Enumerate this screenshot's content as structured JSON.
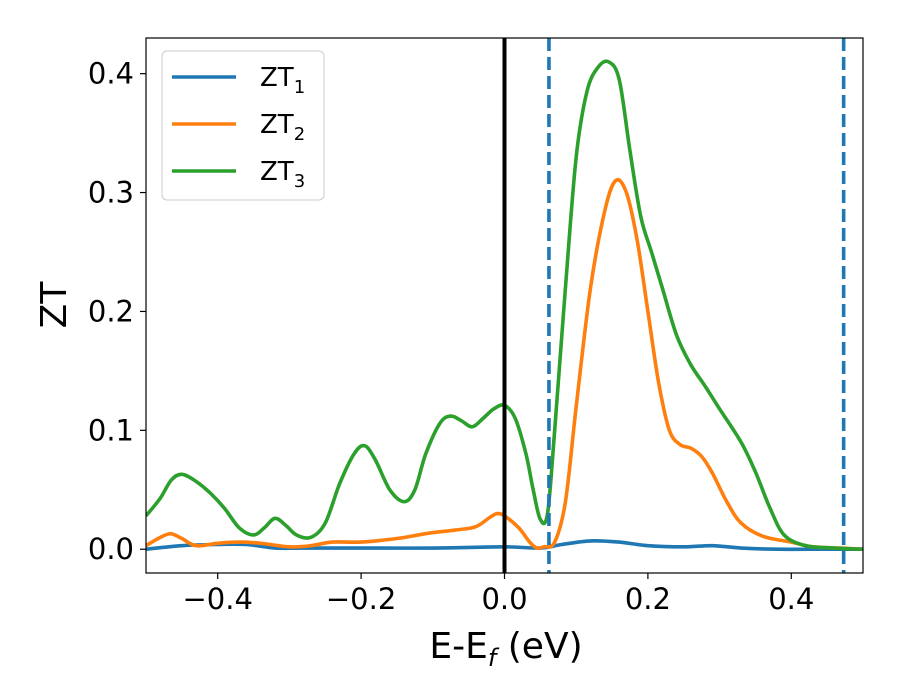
{
  "chart_data": {
    "type": "line",
    "title": "",
    "xlabel": "E-E",
    "xlabel_subscript": "f",
    "xlabel_suffix": " (eV)",
    "ylabel": "ZT",
    "xlim": [
      -0.5,
      0.5
    ],
    "ylim": [
      -0.02,
      0.43
    ],
    "x_ticks": [
      -0.4,
      -0.2,
      0.0,
      0.2,
      0.4
    ],
    "x_tick_labels": [
      "−0.4",
      "−0.2",
      "0.0",
      "0.2",
      "0.4"
    ],
    "y_ticks": [
      0.0,
      0.1,
      0.2,
      0.3,
      0.4
    ],
    "y_tick_labels": [
      "0.0",
      "0.1",
      "0.2",
      "0.3",
      "0.4"
    ],
    "grid": false,
    "legend_position": "top-left",
    "reference_lines": [
      {
        "x": 0.0,
        "style": "solid",
        "color": "#000000"
      },
      {
        "x": 0.062,
        "style": "dashed",
        "color": "#1f77b4"
      },
      {
        "x": 0.473,
        "style": "dashed",
        "color": "#1f77b4"
      }
    ],
    "series": [
      {
        "name": "ZT",
        "subscript": "1",
        "color": "#1f77b4",
        "points": [
          [
            -0.5,
            0.0
          ],
          [
            -0.45,
            0.003
          ],
          [
            -0.4,
            0.004
          ],
          [
            -0.36,
            0.004
          ],
          [
            -0.32,
            0.001
          ],
          [
            -0.28,
            0.001
          ],
          [
            -0.2,
            0.001
          ],
          [
            -0.1,
            0.001
          ],
          [
            0.0,
            0.002
          ],
          [
            0.05,
            0.001
          ],
          [
            0.08,
            0.004
          ],
          [
            0.12,
            0.007
          ],
          [
            0.16,
            0.006
          ],
          [
            0.2,
            0.003
          ],
          [
            0.25,
            0.002
          ],
          [
            0.29,
            0.003
          ],
          [
            0.33,
            0.001
          ],
          [
            0.38,
            0.0
          ],
          [
            0.45,
            0.0
          ],
          [
            0.5,
            0.0
          ]
        ]
      },
      {
        "name": "ZT",
        "subscript": "2",
        "color": "#ff7f0e",
        "points": [
          [
            -0.5,
            0.003
          ],
          [
            -0.48,
            0.01
          ],
          [
            -0.465,
            0.013
          ],
          [
            -0.45,
            0.009
          ],
          [
            -0.43,
            0.003
          ],
          [
            -0.4,
            0.005
          ],
          [
            -0.37,
            0.006
          ],
          [
            -0.34,
            0.005
          ],
          [
            -0.3,
            0.002
          ],
          [
            -0.27,
            0.003
          ],
          [
            -0.24,
            0.006
          ],
          [
            -0.2,
            0.006
          ],
          [
            -0.15,
            0.009
          ],
          [
            -0.12,
            0.012
          ],
          [
            -0.1,
            0.014
          ],
          [
            -0.07,
            0.016
          ],
          [
            -0.04,
            0.019
          ],
          [
            -0.02,
            0.027
          ],
          [
            -0.01,
            0.03
          ],
          [
            0.0,
            0.028
          ],
          [
            0.02,
            0.018
          ],
          [
            0.035,
            0.006
          ],
          [
            0.045,
            0.001
          ],
          [
            0.055,
            0.002
          ],
          [
            0.07,
            0.006
          ],
          [
            0.085,
            0.04
          ],
          [
            0.1,
            0.12
          ],
          [
            0.12,
            0.22
          ],
          [
            0.14,
            0.285
          ],
          [
            0.155,
            0.31
          ],
          [
            0.17,
            0.3
          ],
          [
            0.185,
            0.26
          ],
          [
            0.2,
            0.2
          ],
          [
            0.215,
            0.14
          ],
          [
            0.23,
            0.1
          ],
          [
            0.245,
            0.088
          ],
          [
            0.26,
            0.085
          ],
          [
            0.275,
            0.078
          ],
          [
            0.29,
            0.064
          ],
          [
            0.31,
            0.04
          ],
          [
            0.33,
            0.022
          ],
          [
            0.36,
            0.011
          ],
          [
            0.4,
            0.006
          ],
          [
            0.43,
            0.002
          ],
          [
            0.47,
            0.001
          ],
          [
            0.5,
            0.0
          ]
        ]
      },
      {
        "name": "ZT",
        "subscript": "3",
        "color": "#2ca02c",
        "points": [
          [
            -0.5,
            0.028
          ],
          [
            -0.48,
            0.043
          ],
          [
            -0.465,
            0.058
          ],
          [
            -0.45,
            0.063
          ],
          [
            -0.43,
            0.057
          ],
          [
            -0.41,
            0.047
          ],
          [
            -0.39,
            0.034
          ],
          [
            -0.37,
            0.018
          ],
          [
            -0.35,
            0.012
          ],
          [
            -0.335,
            0.018
          ],
          [
            -0.32,
            0.026
          ],
          [
            -0.305,
            0.02
          ],
          [
            -0.29,
            0.012
          ],
          [
            -0.27,
            0.01
          ],
          [
            -0.25,
            0.022
          ],
          [
            -0.23,
            0.055
          ],
          [
            -0.21,
            0.08
          ],
          [
            -0.195,
            0.087
          ],
          [
            -0.18,
            0.075
          ],
          [
            -0.16,
            0.05
          ],
          [
            -0.14,
            0.04
          ],
          [
            -0.125,
            0.05
          ],
          [
            -0.11,
            0.08
          ],
          [
            -0.09,
            0.106
          ],
          [
            -0.075,
            0.112
          ],
          [
            -0.06,
            0.108
          ],
          [
            -0.045,
            0.103
          ],
          [
            -0.03,
            0.11
          ],
          [
            -0.015,
            0.118
          ],
          [
            0.0,
            0.121
          ],
          [
            0.015,
            0.11
          ],
          [
            0.03,
            0.08
          ],
          [
            0.04,
            0.05
          ],
          [
            0.05,
            0.025
          ],
          [
            0.06,
            0.03
          ],
          [
            0.07,
            0.1
          ],
          [
            0.085,
            0.22
          ],
          [
            0.1,
            0.33
          ],
          [
            0.115,
            0.385
          ],
          [
            0.13,
            0.405
          ],
          [
            0.145,
            0.41
          ],
          [
            0.16,
            0.395
          ],
          [
            0.175,
            0.335
          ],
          [
            0.19,
            0.28
          ],
          [
            0.205,
            0.25
          ],
          [
            0.22,
            0.22
          ],
          [
            0.24,
            0.18
          ],
          [
            0.26,
            0.155
          ],
          [
            0.28,
            0.137
          ],
          [
            0.3,
            0.118
          ],
          [
            0.33,
            0.09
          ],
          [
            0.35,
            0.065
          ],
          [
            0.37,
            0.035
          ],
          [
            0.39,
            0.012
          ],
          [
            0.42,
            0.003
          ],
          [
            0.46,
            0.001
          ],
          [
            0.5,
            0.0
          ]
        ]
      }
    ]
  }
}
